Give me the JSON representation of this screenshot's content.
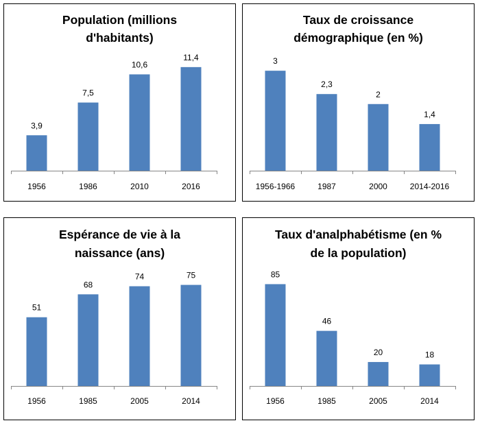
{
  "colors": {
    "bar": "#4f81bd",
    "axis": "#868686",
    "border": "#000000",
    "text": "#000000"
  },
  "chart_data": [
    {
      "type": "bar",
      "title_lines": [
        "Population (millions",
        "d'habitants)"
      ],
      "categories": [
        "1956",
        "1986",
        "2010",
        "2016"
      ],
      "values": [
        3.9,
        7.5,
        10.6,
        11.4
      ],
      "labels": [
        "3,9",
        "7,5",
        "10,6",
        "11,4"
      ],
      "ylim": [
        0,
        13.2
      ],
      "grid": false,
      "legend": "none"
    },
    {
      "type": "bar",
      "title_lines": [
        "Taux de croissance",
        "démographique (en %)"
      ],
      "categories": [
        "1956-1966",
        "1987",
        "2000",
        "2014-2016"
      ],
      "values": [
        3,
        2.3,
        2,
        1.4
      ],
      "labels": [
        "3",
        "2,3",
        "2",
        "1,4"
      ],
      "ylim": [
        0,
        3.6
      ],
      "grid": false,
      "legend": "none"
    },
    {
      "type": "bar",
      "title_lines": [
        "Espérance de vie à la",
        "naissance (ans)"
      ],
      "categories": [
        "1956",
        "1985",
        "2005",
        "2014"
      ],
      "values": [
        51,
        68,
        74,
        75
      ],
      "labels": [
        "51",
        "68",
        "74",
        "75"
      ],
      "ylim": [
        0,
        88
      ],
      "grid": false,
      "legend": "none"
    },
    {
      "type": "bar",
      "title_lines": [
        "Taux d'analphabétisme (en %",
        "de la population)"
      ],
      "categories": [
        "1956",
        "1985",
        "2005",
        "2014"
      ],
      "values": [
        85,
        46,
        20,
        18
      ],
      "labels": [
        "85",
        "46",
        "20",
        "18"
      ],
      "ylim": [
        0,
        99
      ],
      "grid": false,
      "legend": "none"
    }
  ]
}
